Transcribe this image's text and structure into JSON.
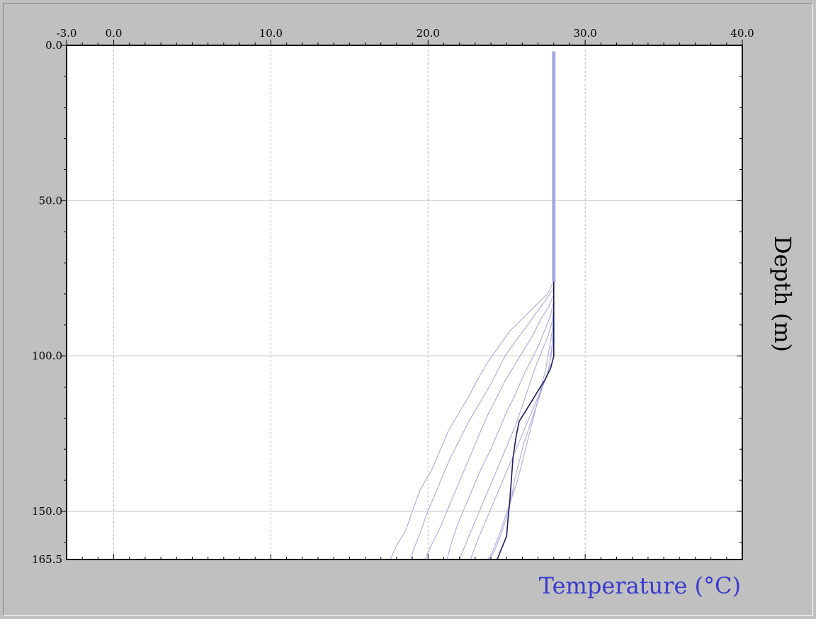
{
  "chart_data": {
    "type": "line",
    "xlabel": "Temperature (°C)",
    "ylabel": "Depth (m)",
    "xlim": [
      -3.0,
      40.0
    ],
    "ylim": [
      0.0,
      165.5
    ],
    "y_inverted": true,
    "x_axis_position": "top",
    "x_ticks": [
      {
        "value": -3.0,
        "label": "-3.0"
      },
      {
        "value": 0.0,
        "label": "0.0"
      },
      {
        "value": 10.0,
        "label": "10.0"
      },
      {
        "value": 20.0,
        "label": "20.0"
      },
      {
        "value": 30.0,
        "label": "30.0"
      },
      {
        "value": 40.0,
        "label": "40.0"
      }
    ],
    "y_ticks": [
      {
        "value": 0.0,
        "label": "0.0"
      },
      {
        "value": 50.0,
        "label": "50.0"
      },
      {
        "value": 100.0,
        "label": "100.0"
      },
      {
        "value": 150.0,
        "label": "150.0"
      },
      {
        "value": 165.5,
        "label": "165.5"
      }
    ],
    "grid": {
      "vertical": "dotted",
      "horizontal": "solid"
    },
    "colors": {
      "xlabel": "#3a3ad0",
      "primary_profile": "#1a1a5e",
      "other_profiles": "#a9a9e6",
      "plot_background": "#ffffff",
      "panel_background": "#c0c0c0"
    },
    "series": [
      {
        "role": "primary",
        "points": [
          [
            28.0,
            2
          ],
          [
            28.0,
            10
          ],
          [
            28.0,
            25
          ],
          [
            28.0,
            50
          ],
          [
            28.0,
            75
          ],
          [
            28.0,
            100
          ],
          [
            27.8,
            104
          ],
          [
            27.4,
            108
          ],
          [
            26.9,
            112
          ],
          [
            26.3,
            117
          ],
          [
            25.8,
            121
          ],
          [
            25.6,
            126
          ],
          [
            25.4,
            133
          ],
          [
            25.3,
            140
          ],
          [
            25.2,
            147
          ],
          [
            25.1,
            152
          ],
          [
            25.0,
            158
          ],
          [
            24.6,
            163
          ],
          [
            24.4,
            165.5
          ]
        ]
      },
      {
        "role": "other",
        "points": [
          [
            28.0,
            2
          ],
          [
            28.0,
            40
          ],
          [
            28.0,
            76
          ],
          [
            27.6,
            80
          ],
          [
            26.8,
            84
          ],
          [
            26.0,
            88
          ],
          [
            25.2,
            92
          ],
          [
            24.5,
            97
          ],
          [
            23.8,
            102
          ],
          [
            23.1,
            108
          ],
          [
            22.6,
            113
          ],
          [
            22.0,
            118
          ],
          [
            21.3,
            124
          ],
          [
            20.8,
            130
          ],
          [
            20.2,
            137
          ],
          [
            19.5,
            143
          ],
          [
            19.0,
            150
          ],
          [
            18.6,
            156
          ],
          [
            18.0,
            161
          ],
          [
            17.6,
            165.5
          ]
        ]
      },
      {
        "role": "other",
        "points": [
          [
            28.0,
            2
          ],
          [
            28.0,
            78
          ],
          [
            27.5,
            82
          ],
          [
            26.9,
            86
          ],
          [
            26.2,
            91
          ],
          [
            25.6,
            95
          ],
          [
            24.9,
            100
          ],
          [
            24.5,
            104
          ],
          [
            24.0,
            109
          ],
          [
            23.3,
            115
          ],
          [
            22.6,
            121
          ],
          [
            22.0,
            127
          ],
          [
            21.4,
            133
          ],
          [
            20.9,
            139
          ],
          [
            20.4,
            145
          ],
          [
            19.9,
            151
          ],
          [
            19.5,
            157
          ],
          [
            19.1,
            162
          ],
          [
            18.9,
            165.5
          ]
        ]
      },
      {
        "role": "other",
        "points": [
          [
            28.0,
            2
          ],
          [
            28.0,
            80
          ],
          [
            27.7,
            84
          ],
          [
            27.2,
            88
          ],
          [
            26.7,
            93
          ],
          [
            26.1,
            98
          ],
          [
            25.5,
            103
          ],
          [
            24.9,
            108
          ],
          [
            24.3,
            114
          ],
          [
            23.7,
            120
          ],
          [
            23.2,
            126
          ],
          [
            22.7,
            132
          ],
          [
            22.2,
            138
          ],
          [
            21.7,
            144
          ],
          [
            21.2,
            150
          ],
          [
            20.7,
            156
          ],
          [
            20.2,
            161
          ],
          [
            19.8,
            165.5
          ]
        ]
      },
      {
        "role": "other",
        "points": [
          [
            28.0,
            2
          ],
          [
            28.0,
            82
          ],
          [
            27.8,
            87
          ],
          [
            27.4,
            92
          ],
          [
            27.0,
            97
          ],
          [
            26.5,
            102
          ],
          [
            26.0,
            107
          ],
          [
            25.5,
            113
          ],
          [
            25.0,
            118
          ],
          [
            24.5,
            124
          ],
          [
            24.0,
            130
          ],
          [
            23.4,
            136
          ],
          [
            22.9,
            142
          ],
          [
            22.4,
            148
          ],
          [
            21.9,
            154
          ],
          [
            21.5,
            160
          ],
          [
            21.2,
            165.5
          ]
        ]
      },
      {
        "role": "other",
        "points": [
          [
            28.0,
            2
          ],
          [
            28.0,
            84
          ],
          [
            27.9,
            89
          ],
          [
            27.6,
            94
          ],
          [
            27.2,
            99
          ],
          [
            26.8,
            104
          ],
          [
            26.4,
            110
          ],
          [
            26.0,
            116
          ],
          [
            25.6,
            122
          ],
          [
            25.1,
            128
          ],
          [
            24.6,
            134
          ],
          [
            24.1,
            140
          ],
          [
            23.6,
            146
          ],
          [
            23.1,
            152
          ],
          [
            22.6,
            158
          ],
          [
            22.2,
            163
          ],
          [
            22.0,
            165.5
          ]
        ]
      },
      {
        "role": "other",
        "points": [
          [
            28.0,
            2
          ],
          [
            28.0,
            86
          ],
          [
            27.9,
            92
          ],
          [
            27.7,
            98
          ],
          [
            27.5,
            104
          ],
          [
            27.2,
            110
          ],
          [
            26.9,
            116
          ],
          [
            26.6,
            122
          ],
          [
            26.3,
            128
          ],
          [
            26.0,
            134
          ],
          [
            25.7,
            140
          ],
          [
            25.3,
            146
          ],
          [
            24.9,
            152
          ],
          [
            24.5,
            158
          ],
          [
            24.1,
            163
          ],
          [
            23.8,
            165.5
          ]
        ]
      },
      {
        "role": "other",
        "points": [
          [
            28.0,
            2
          ],
          [
            28.0,
            88
          ],
          [
            27.9,
            96
          ],
          [
            27.7,
            104
          ],
          [
            27.3,
            110
          ],
          [
            26.9,
            116
          ],
          [
            26.5,
            122
          ],
          [
            26.1,
            128
          ],
          [
            25.8,
            134
          ],
          [
            25.5,
            140
          ],
          [
            25.3,
            146
          ],
          [
            25.0,
            152
          ],
          [
            24.6,
            158
          ],
          [
            24.2,
            163
          ],
          [
            23.9,
            165.5
          ]
        ]
      },
      {
        "role": "other",
        "points": [
          [
            28.0,
            2
          ],
          [
            28.0,
            90
          ],
          [
            27.9,
            98
          ],
          [
            27.6,
            106
          ],
          [
            27.1,
            112
          ],
          [
            26.6,
            118
          ],
          [
            26.1,
            124
          ],
          [
            25.6,
            130
          ],
          [
            25.1,
            136
          ],
          [
            24.6,
            142
          ],
          [
            24.1,
            148
          ],
          [
            23.6,
            154
          ],
          [
            23.1,
            160
          ],
          [
            22.7,
            165.5
          ]
        ]
      }
    ]
  }
}
